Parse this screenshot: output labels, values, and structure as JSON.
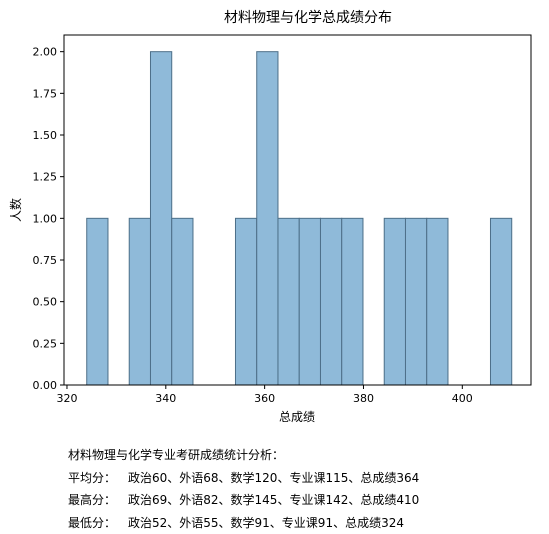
{
  "chart_data": {
    "type": "bar",
    "title": "材料物理与化学总成绩分布",
    "xlabel": "总成绩",
    "ylabel": "人数",
    "xlim": [
      319.4,
      413.9
    ],
    "ylim": [
      0,
      2.1
    ],
    "xticks": [
      {
        "value": 320,
        "label": "320"
      },
      {
        "value": 340,
        "label": "340"
      },
      {
        "value": 360,
        "label": "360"
      },
      {
        "value": 380,
        "label": "380"
      },
      {
        "value": 400,
        "label": "400"
      }
    ],
    "yticks": [
      {
        "value": 0,
        "label": "0.00"
      },
      {
        "value": 0.25,
        "label": "0.25"
      },
      {
        "value": 0.5,
        "label": "0.50"
      },
      {
        "value": 0.75,
        "label": "0.75"
      },
      {
        "value": 1.0,
        "label": "1.00"
      },
      {
        "value": 1.25,
        "label": "1.25"
      },
      {
        "value": 1.5,
        "label": "1.50"
      },
      {
        "value": 1.75,
        "label": "1.75"
      },
      {
        "value": 2.0,
        "label": "2.00"
      }
    ],
    "bins": [
      {
        "x0": 324.0,
        "x1": 328.3,
        "count": 1
      },
      {
        "x0": 328.3,
        "x1": 332.6,
        "count": 0
      },
      {
        "x0": 332.6,
        "x1": 336.9,
        "count": 1
      },
      {
        "x0": 336.9,
        "x1": 341.2,
        "count": 2
      },
      {
        "x0": 341.2,
        "x1": 345.5,
        "count": 1
      },
      {
        "x0": 345.5,
        "x1": 349.8,
        "count": 0
      },
      {
        "x0": 349.8,
        "x1": 354.1,
        "count": 0
      },
      {
        "x0": 354.1,
        "x1": 358.4,
        "count": 1
      },
      {
        "x0": 358.4,
        "x1": 362.7,
        "count": 2
      },
      {
        "x0": 362.7,
        "x1": 367.0,
        "count": 1
      },
      {
        "x0": 367.0,
        "x1": 371.3,
        "count": 1
      },
      {
        "x0": 371.3,
        "x1": 375.6,
        "count": 1
      },
      {
        "x0": 375.6,
        "x1": 379.9,
        "count": 1
      },
      {
        "x0": 379.9,
        "x1": 384.2,
        "count": 0
      },
      {
        "x0": 384.2,
        "x1": 388.5,
        "count": 1
      },
      {
        "x0": 388.5,
        "x1": 392.8,
        "count": 1
      },
      {
        "x0": 392.8,
        "x1": 397.1,
        "count": 1
      },
      {
        "x0": 397.1,
        "x1": 401.4,
        "count": 0
      },
      {
        "x0": 401.4,
        "x1": 405.7,
        "count": 0
      },
      {
        "x0": 405.7,
        "x1": 410.0,
        "count": 1
      }
    ],
    "bar_color": "#8fbad9",
    "bar_edge_color": "#4d6f88",
    "grid": false
  },
  "stats": {
    "heading": "材料物理与化学专业考研成绩统计分析：",
    "rows": [
      {
        "label": "平均分：",
        "text": "政治60、外语68、数学120、专业课115、总成绩364"
      },
      {
        "label": "最高分：",
        "text": "政治69、外语82、数学145、专业课142、总成绩410"
      },
      {
        "label": "最低分：",
        "text": "政治52、外语55、数学91、专业课91、总成绩324"
      }
    ]
  }
}
